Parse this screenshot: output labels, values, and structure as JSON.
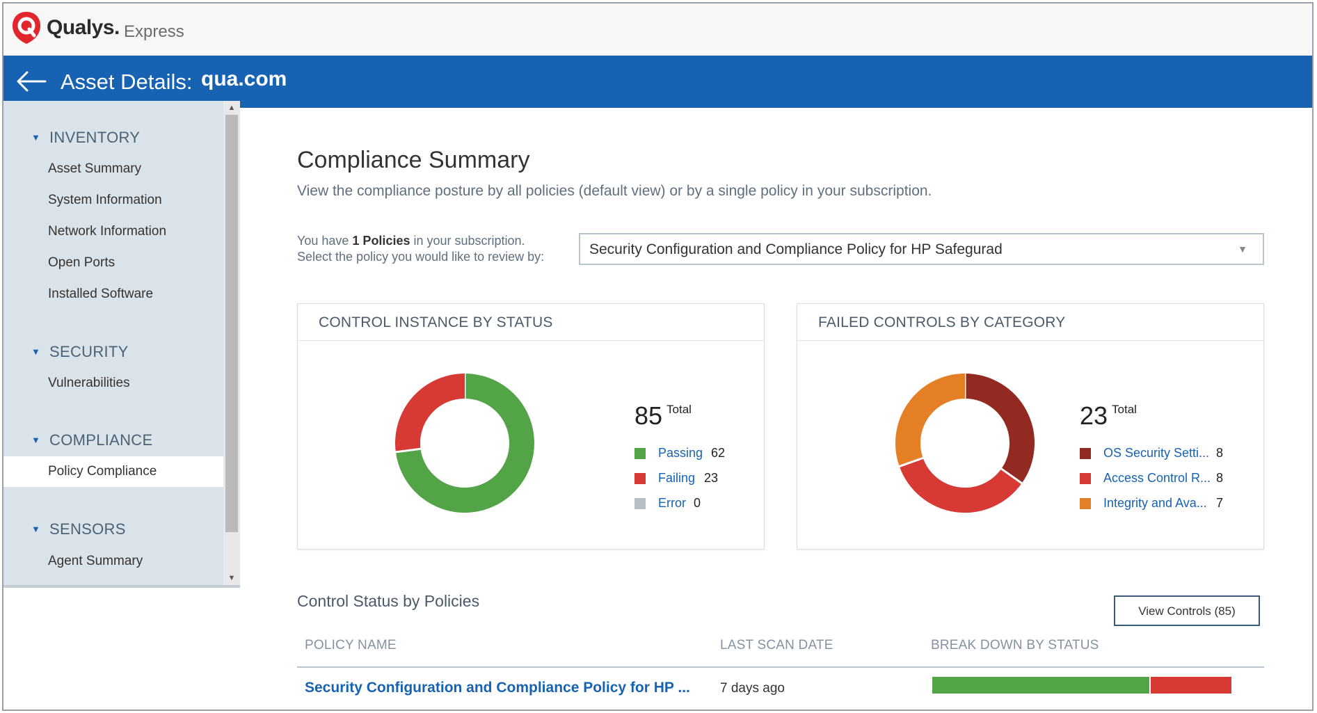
{
  "brand": {
    "name": "Qualys.",
    "product": "Express",
    "logo_color": "#e2262e"
  },
  "asset_header": {
    "label": "Asset Details:",
    "value": "qua.com",
    "bg_color": "#1762b2"
  },
  "sidebar": {
    "sections": [
      {
        "title": "INVENTORY",
        "items": [
          "Asset Summary",
          "System Information",
          "Network Information",
          "Open Ports",
          "Installed Software"
        ]
      },
      {
        "title": "SECURITY",
        "items": [
          "Vulnerabilities"
        ]
      },
      {
        "title": "COMPLIANCE",
        "items": [
          "Policy Compliance"
        ]
      },
      {
        "title": "SENSORS",
        "items": [
          "Agent Summary"
        ]
      }
    ],
    "active_item": "Policy Compliance"
  },
  "main": {
    "title": "Compliance Summary",
    "subtitle": "View the compliance posture by all policies (default view) or by a single policy in your subscription.",
    "policy_intro": {
      "prefix": "You have ",
      "count": "1 Policies",
      "suffix": " in your subscription.",
      "line2": "Select the policy you would like to review by:"
    },
    "policy_select": {
      "value": "Security Configuration and Compliance Policy for HP Safegurad"
    }
  },
  "cards": [
    {
      "title": "CONTROL INSTANCE BY STATUS",
      "total": "85",
      "total_label": "Total",
      "segments": [
        {
          "label": "Passing",
          "value": 62,
          "color": "#52a447"
        },
        {
          "label": "Failing",
          "value": 23,
          "color": "#d73a34"
        },
        {
          "label": "Error",
          "value": 0,
          "color": "#b6bec6"
        }
      ]
    },
    {
      "title": "FAILED CONTROLS BY CATEGORY",
      "total": "23",
      "total_label": "Total",
      "segments": [
        {
          "label": "OS Security Setti...",
          "value": 8,
          "color": "#922a22"
        },
        {
          "label": "Access Control R...",
          "value": 8,
          "color": "#d73a34"
        },
        {
          "label": "Integrity and Ava...",
          "value": 7,
          "color": "#e57f25"
        }
      ]
    }
  ],
  "control_status": {
    "title": "Control Status by Policies",
    "view_button": "View Controls (85)",
    "columns": [
      "POLICY NAME",
      "LAST SCAN DATE",
      "BREAK DOWN BY STATUS"
    ],
    "rows": [
      {
        "policy": "Security Configuration and Compliance Policy for HP ...",
        "last_scan": "7 days ago",
        "breakdown": [
          {
            "status": "Passing",
            "value": 62,
            "color": "#52a447"
          },
          {
            "status": "Failing",
            "value": 23,
            "color": "#d73a34"
          }
        ]
      }
    ]
  }
}
